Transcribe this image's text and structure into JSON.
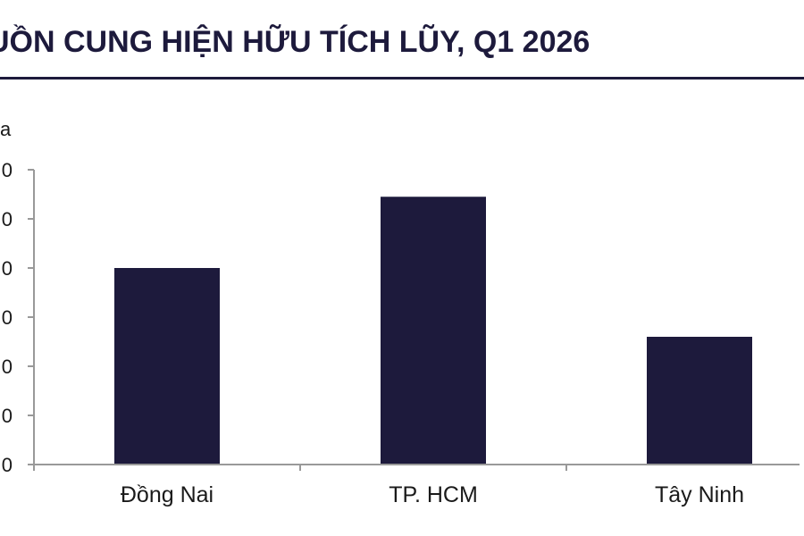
{
  "header": {
    "title": "UỒN CUNG HIỆN HỮU TÍCH LŨY, Q1 2026"
  },
  "colors": {
    "bar": "#1d1a3c",
    "title": "#1d1a3c",
    "axis": "#999999",
    "text": "#1a1a1a"
  },
  "chart_data": {
    "type": "bar",
    "unit_label": "a",
    "categories": [
      "Đồng Nai",
      "TP. HCM",
      "Tây Ninh"
    ],
    "values": [
      4.0,
      5.45,
      2.6
    ],
    "y_tick_labels": [
      "0",
      "0",
      "0",
      "0",
      "0",
      "0",
      "0"
    ],
    "ylim": [
      0,
      6
    ],
    "grid": false,
    "legend": "none"
  }
}
